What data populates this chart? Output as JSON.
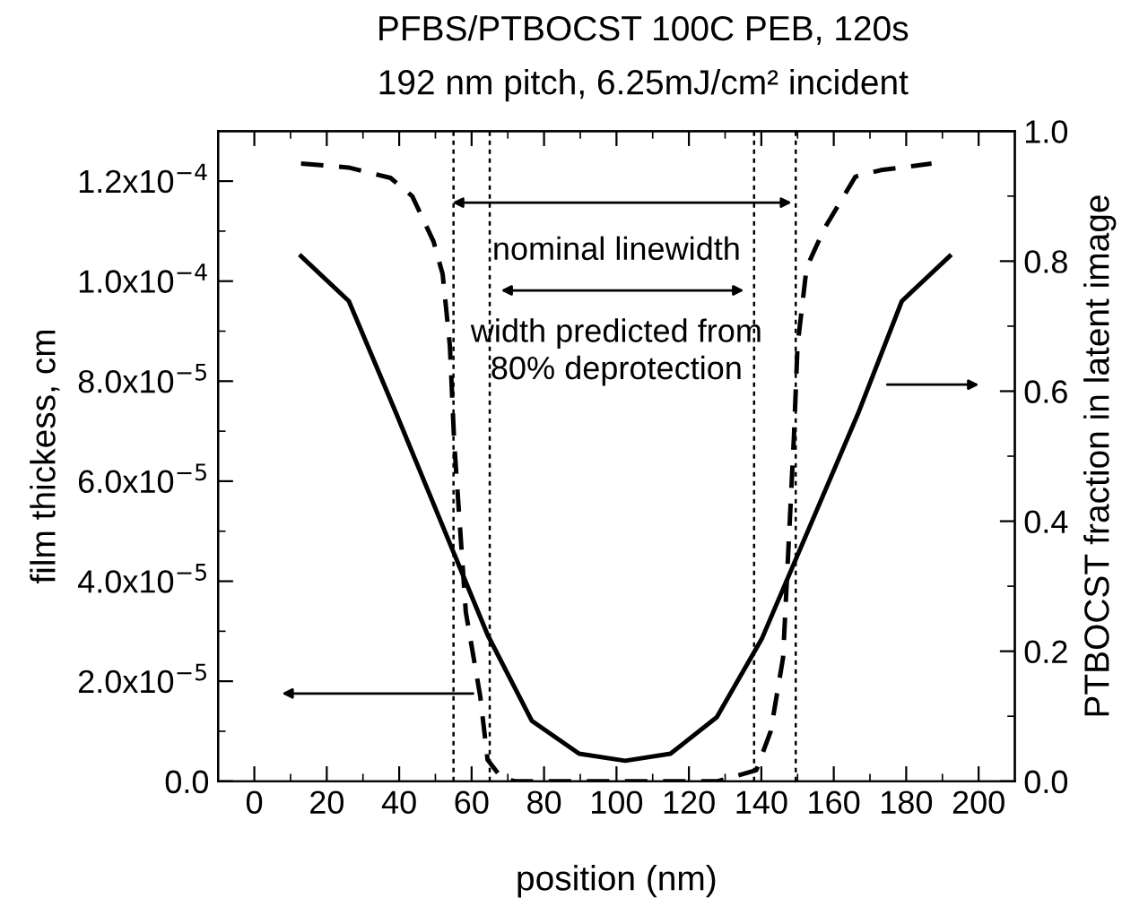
{
  "chart_data": {
    "type": "line",
    "title": "PFBS/PTBOCST 100C PEB, 120s",
    "subtitle": "192 nm pitch, 6.25mJ/cm² incident",
    "xlabel": "position (nm)",
    "ylabel": "film thickess, cm",
    "y2label": "PTBOCST fraction in latent image",
    "series": [
      {
        "color": "#000000",
        "line_style": "solid",
        "axis": "y",
        "x": [
          12.9,
          26.1,
          39.2,
          64.4,
          76.6,
          89.7,
          102.4,
          114.9,
          127.7,
          140.2,
          166.7,
          178.8,
          192
        ],
        "values": [
          0.000105,
          9.6e-05,
          7.35e-05,
          2.93e-05,
          1.21e-05,
          5.5e-06,
          4.1e-06,
          5.5e-06,
          1.28e-05,
          2.86e-05,
          7.35e-05,
          9.6e-05,
          0.000105
        ]
      },
      {
        "color": "#000000",
        "line_style": "dashed",
        "axis": "y2",
        "x": [
          12.9,
          26,
          37.6,
          43.6,
          49.5,
          52,
          54,
          55.2,
          58.4,
          62.4,
          64.4,
          68.3,
          72,
          128,
          138.6,
          142.6,
          146,
          149,
          150,
          152.5,
          157.4,
          166,
          173,
          187
        ],
        "values": [
          0.95,
          0.944,
          0.928,
          0.9,
          0.83,
          0.78,
          0.67,
          0.52,
          0.26,
          0.13,
          0.033,
          0.005,
          0,
          0,
          0.017,
          0.077,
          0.19,
          0.53,
          0.67,
          0.79,
          0.85,
          0.93,
          0.94,
          0.95
        ]
      }
    ],
    "marker": "none",
    "xlim": [
      -10,
      210
    ],
    "xticks": [
      0,
      20,
      40,
      60,
      80,
      100,
      120,
      140,
      160,
      180,
      200
    ],
    "ylim": [
      0,
      0.00013
    ],
    "yticks": [
      {
        "value": 0,
        "label": "0.0"
      },
      {
        "value": 2e-05,
        "label": "2.0x10$^{−5}$"
      },
      {
        "value": 4e-05,
        "label": "4.0x10$^{−5}$"
      },
      {
        "value": 6e-05,
        "label": "6.0x10$^{−5}$"
      },
      {
        "value": 8e-05,
        "label": "8.0x10$^{−5}$"
      },
      {
        "value": 0.0001,
        "label": "1.0x10$^{−4}$"
      },
      {
        "value": 0.00012,
        "label": "1.2x10$^{−4}$"
      }
    ],
    "y2lim": [
      0,
      1
    ],
    "y2ticks": [
      {
        "value": 0,
        "label": "0.0"
      },
      {
        "value": 0.2,
        "label": "0.2"
      },
      {
        "value": 0.4,
        "label": "0.4"
      },
      {
        "value": 0.6,
        "label": "0.6"
      },
      {
        "value": 0.8,
        "label": "0.8"
      },
      {
        "value": 1,
        "label": "1.0"
      }
    ],
    "ref_lines": [
      {
        "axis": "x",
        "value": 55,
        "line_style": "dotted",
        "color": "#000000"
      },
      {
        "axis": "x",
        "value": 65,
        "line_style": "dotted",
        "color": "#000000"
      },
      {
        "axis": "x",
        "value": 138,
        "line_style": "dotted",
        "color": "#000000"
      },
      {
        "axis": "x",
        "value": 149.5,
        "line_style": "dotted",
        "color": "#000000"
      }
    ],
    "annotations": [
      "nominal linewidth",
      "width predicted from\n80% deprotection"
    ],
    "grid": false,
    "legend": false
  }
}
